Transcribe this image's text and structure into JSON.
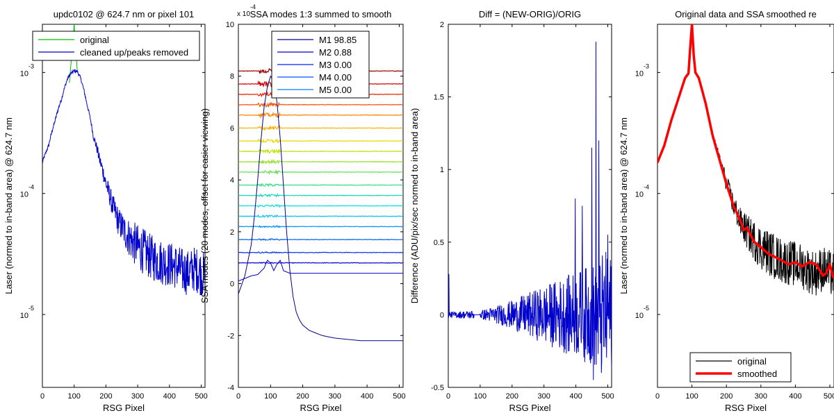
{
  "chart_data": [
    {
      "id": "p1",
      "type": "line",
      "title": "updc0102 @ 624.7 nm or pixel 101",
      "xlabel": "RSG Pixel",
      "ylabel": "Laser (normed to in-band area) @ 624.7 nm",
      "xlim": [
        0,
        512
      ],
      "ylim": [
        2.5e-06,
        0.0025
      ],
      "yscale": "log",
      "xticks": [
        0,
        100,
        200,
        300,
        400,
        500
      ],
      "yticks": [
        {
          "value": 0.001,
          "base": "10",
          "exp": "-3"
        },
        {
          "value": 0.0001,
          "base": "10",
          "exp": "-4"
        },
        {
          "value": 1e-05,
          "base": "10",
          "exp": "-5"
        }
      ],
      "legend": {
        "position": "top",
        "entries": [
          {
            "label": "original",
            "color": "#00c000"
          },
          {
            "label": "cleaned up/peaks removed",
            "color": "#0000cc"
          }
        ]
      },
      "series": [
        {
          "name": "original",
          "color": "#00c000",
          "x": [
            85,
            90,
            95,
            100,
            105,
            110
          ],
          "y": [
            0.00082,
            0.00118,
            0.0017,
            0.0025,
            0.0015,
            0.00102
          ]
        },
        {
          "name": "cleaned up/peaks removed",
          "color": "#0000cc",
          "x": [
            0,
            20,
            40,
            60,
            80,
            90,
            100,
            110,
            120,
            140,
            160,
            180,
            200,
            220,
            240,
            260,
            280,
            300,
            320,
            340,
            360,
            380,
            400,
            420,
            440,
            460,
            480,
            500,
            510
          ],
          "y": [
            0.00018,
            0.00025,
            0.0004,
            0.0006,
            0.0009,
            0.00098,
            0.00103,
            0.00102,
            0.0009,
            0.00055,
            0.0003,
            0.00019,
            0.00012,
            8e-05,
            5.8e-05,
            4.8e-05,
            4.1e-05,
            3.6e-05,
            3.3e-05,
            3e-05,
            2.8e-05,
            2.7e-05,
            2.6e-05,
            2.5e-05,
            2.3e-05,
            2.2e-05,
            2.4e-05,
            2.2e-05,
            2.1e-05
          ],
          "noise": 0.35
        }
      ]
    },
    {
      "id": "p2",
      "type": "line",
      "title": "SSA modes 1:3 summed to smooth",
      "xlabel": "RSG Pixel",
      "ylabel": "SSA modes (20 modes, offset for easier viewing)",
      "axis_multiplier": {
        "base": "x 10",
        "exp": "-4"
      },
      "xlim": [
        0,
        512
      ],
      "ylim": [
        -4,
        10
      ],
      "xticks": [
        0,
        100,
        200,
        300,
        400,
        500
      ],
      "yticks": [
        -4,
        -2,
        0,
        2,
        4,
        6,
        8,
        10
      ],
      "legend": {
        "position": "top",
        "entries": [
          {
            "label": "M1 98.85",
            "color": "#00008f"
          },
          {
            "label": "M2 0.88",
            "color": "#0000c8"
          },
          {
            "label": "M3 0.00",
            "color": "#0020ff"
          },
          {
            "label": "M4 0.00",
            "color": "#0050ff"
          },
          {
            "label": "M5 0.00",
            "color": "#0080ff"
          }
        ]
      },
      "mode1": {
        "name": "M1 98.85",
        "color": "#00008f",
        "x": [
          0,
          20,
          40,
          50,
          60,
          70,
          80,
          90,
          100,
          110,
          120,
          130,
          140,
          150,
          160,
          170,
          180,
          190,
          200,
          220,
          240,
          260,
          280,
          300,
          340,
          380,
          420,
          460,
          500,
          512
        ],
        "y": [
          -0.4,
          0.3,
          1.5,
          2.6,
          4.0,
          5.5,
          6.8,
          7.6,
          8.0,
          7.8,
          7.0,
          5.6,
          3.8,
          2.0,
          0.5,
          -0.5,
          -1.1,
          -1.4,
          -1.6,
          -1.8,
          -1.9,
          -2.0,
          -2.05,
          -2.1,
          -2.15,
          -2.2,
          -2.2,
          -2.2,
          -2.2,
          -2.2
        ]
      },
      "mode2": {
        "name": "M2 0.88",
        "color": "#0000c8",
        "x": [
          0,
          20,
          40,
          60,
          80,
          90,
          100,
          110,
          120,
          130,
          140,
          160,
          200,
          300,
          400,
          512
        ],
        "y": [
          0.1,
          0.2,
          0.3,
          0.35,
          0.6,
          0.9,
          0.8,
          0.5,
          0.75,
          0.9,
          0.5,
          0.4,
          0.4,
          0.4,
          0.4,
          0.4
        ]
      },
      "offsets": [
        0.8,
        1.2,
        1.7,
        2.2,
        2.6,
        3.0,
        3.4,
        3.8,
        4.3,
        4.7,
        5.1,
        5.5,
        6.0,
        6.5,
        6.9,
        7.3,
        7.7,
        8.2
      ],
      "offset_colors": [
        "#0000e0",
        "#0030ff",
        "#0060ff",
        "#0090ff",
        "#00c0ff",
        "#00e0e0",
        "#10d8b8",
        "#30e080",
        "#60e050",
        "#90e020",
        "#c0e000",
        "#e8d800",
        "#ffb000",
        "#ff8000",
        "#ff5000",
        "#ee2000",
        "#d00000",
        "#a00000"
      ]
    },
    {
      "id": "p3",
      "type": "line",
      "title": "Diff = (NEW-ORIG)/ORIG",
      "xlabel": "RSG Pixel",
      "ylabel": "Difference (ADU/pix/sec normed to in-band area)",
      "xlim": [
        0,
        512
      ],
      "ylim": [
        -0.5,
        2
      ],
      "xticks": [
        0,
        100,
        200,
        300,
        400,
        500
      ],
      "yticks": [
        -0.5,
        0,
        0.5,
        1,
        1.5,
        2
      ],
      "series": [
        {
          "name": "",
          "color": "#0000cc",
          "envelope_x": [
            0,
            80,
            100,
            150,
            200,
            250,
            300,
            350,
            400,
            450,
            470,
            500,
            512
          ],
          "envelope_y": [
            0.02,
            0.03,
            0.03,
            0.06,
            0.1,
            0.15,
            0.2,
            0.25,
            0.3,
            0.35,
            0.4,
            0.45,
            0.4
          ],
          "spikes": [
            {
              "x": 2,
              "y": 0.28
            },
            {
              "x": 398,
              "y": 0.8
            },
            {
              "x": 420,
              "y": 0.75
            },
            {
              "x": 450,
              "y": 1.15
            },
            {
              "x": 463,
              "y": 1.88
            },
            {
              "x": 472,
              "y": 1.2
            },
            {
              "x": 455,
              "y": -0.45
            },
            {
              "x": 480,
              "y": -0.4
            },
            {
              "x": 500,
              "y": 0.55
            }
          ]
        }
      ]
    },
    {
      "id": "p4",
      "type": "line",
      "title": "Original data and SSA smoothed re",
      "xlabel": "RSG Pixel",
      "ylabel": "Laser (normed to in-band area) @ 624.7 nm",
      "xlim": [
        0,
        512
      ],
      "ylim": [
        2.5e-06,
        0.0025
      ],
      "yscale": "log",
      "xticks": [
        0,
        100,
        200,
        300,
        400,
        500
      ],
      "yticks": [
        {
          "value": 0.001,
          "base": "10",
          "exp": "-3"
        },
        {
          "value": 0.0001,
          "base": "10",
          "exp": "-4"
        },
        {
          "value": 1e-05,
          "base": "10",
          "exp": "-5"
        }
      ],
      "legend": {
        "position": "bottom",
        "entries": [
          {
            "label": "original",
            "color": "#000000"
          },
          {
            "label": "smoothed",
            "color": "#ff0000"
          }
        ]
      },
      "series": [
        {
          "name": "original",
          "color": "#000000",
          "x": [
            0,
            20,
            40,
            60,
            80,
            90,
            95,
            100,
            105,
            110,
            120,
            140,
            160,
            180,
            200,
            220,
            240,
            260,
            280,
            300,
            320,
            340,
            360,
            380,
            400,
            420,
            440,
            460,
            480,
            500,
            510
          ],
          "y": [
            0.00018,
            0.00025,
            0.0004,
            0.0006,
            0.0009,
            0.00098,
            0.0016,
            0.0025,
            0.0014,
            0.001,
            0.0009,
            0.00055,
            0.0003,
            0.00019,
            0.00012,
            8e-05,
            5.8e-05,
            4.8e-05,
            4.1e-05,
            3.6e-05,
            3.3e-05,
            3e-05,
            2.8e-05,
            2.7e-05,
            2.6e-05,
            2.5e-05,
            2.3e-05,
            2.2e-05,
            2.4e-05,
            2.2e-05,
            2.1e-05
          ],
          "noise": 0.35
        },
        {
          "name": "smoothed",
          "color": "#ff0000",
          "x": [
            0,
            20,
            40,
            60,
            80,
            90,
            95,
            100,
            105,
            110,
            120,
            140,
            160,
            180,
            200,
            220,
            240,
            250,
            260,
            280,
            300,
            320,
            340,
            360,
            380,
            400,
            420,
            440,
            460,
            480,
            490,
            500,
            510
          ],
          "y": [
            0.00018,
            0.00025,
            0.0004,
            0.0006,
            0.0009,
            0.00098,
            0.0016,
            0.0025,
            0.0014,
            0.001,
            0.0009,
            0.00055,
            0.0003,
            0.00019,
            0.00012,
            8e-05,
            6e-05,
            5e-05,
            5.2e-05,
            4e-05,
            3.6e-05,
            3.2e-05,
            3e-05,
            2.8e-05,
            2.6e-05,
            2.7e-05,
            2.5e-05,
            2.7e-05,
            2.6e-05,
            2.1e-05,
            2.2e-05,
            2.6e-05,
            2e-05
          ]
        }
      ]
    }
  ]
}
